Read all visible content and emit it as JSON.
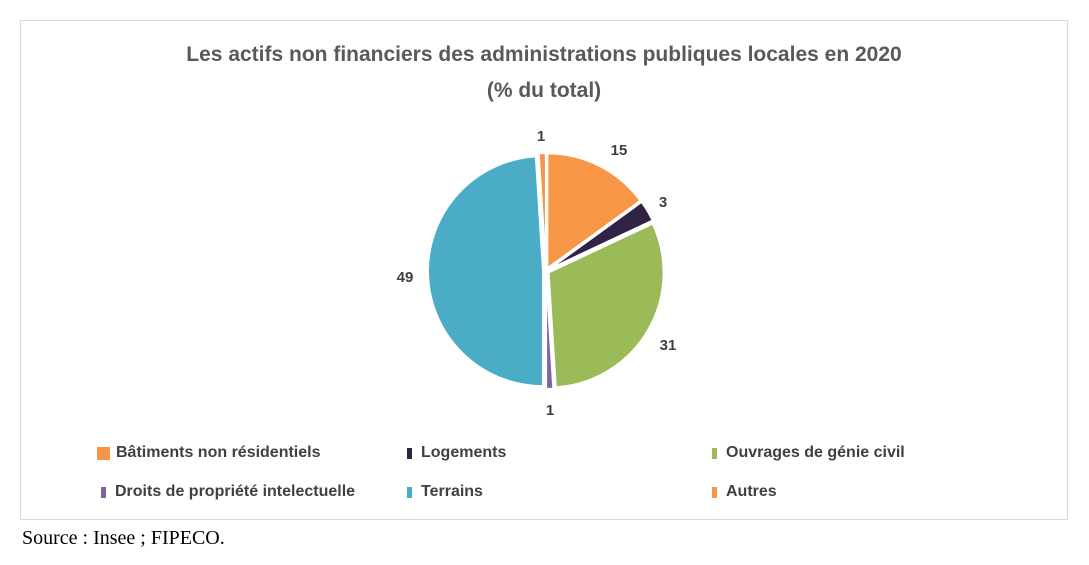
{
  "chart_data": {
    "type": "pie",
    "title": "Les actifs non financiers des administrations publiques locales en 2020",
    "subtitle": "(% du total)",
    "series": [
      {
        "name": "Bâtiments non résidentiels",
        "value": 15,
        "label": "15",
        "color": "#f79646"
      },
      {
        "name": "Logements",
        "value": 3,
        "label": "3",
        "color": "#2f2346"
      },
      {
        "name": "Ouvrages de génie civil",
        "value": 31,
        "label": "31",
        "color": "#9bbb59"
      },
      {
        "name": "Droits de propriété intelectuelle",
        "value": 1,
        "label": "1",
        "color": "#8064a2"
      },
      {
        "name": "Terrains",
        "value": 49,
        "label": "49",
        "color": "#4bacc6"
      },
      {
        "name": "Autres",
        "value": 1,
        "label": "1",
        "color": "#f79646"
      }
    ],
    "legend_position": "bottom"
  },
  "source": "Source : Insee ; FIPECO."
}
